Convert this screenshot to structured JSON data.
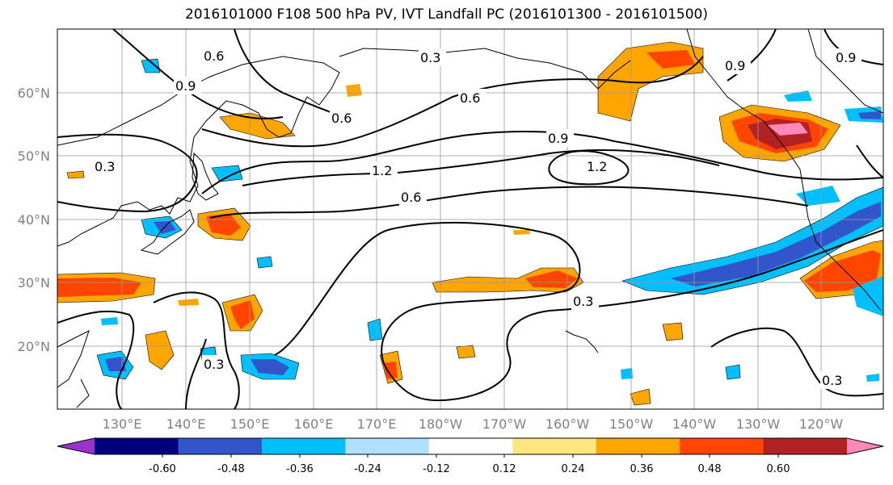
{
  "title": "2016101000 F108 500 hPa PV, IVT Landfall PC (2016101300 - 2016101500)",
  "lon_ticks": [
    "130°E",
    "140°E",
    "150°E",
    "160°E",
    "170°E",
    "180°W",
    "170°W",
    "160°W",
    "150°W",
    "140°W",
    "130°W",
    "120°W"
  ],
  "lat_ticks": [
    "20°N",
    "30°N",
    "40°N",
    "50°N",
    "60°N"
  ],
  "colorbar": {
    "colors": [
      "#9933cc",
      "#000080",
      "#3355cc",
      "#00bfff",
      "#b0e0ff",
      "#ffffff",
      "#ffe680",
      "#ffa500",
      "#ff4500",
      "#b22222",
      "#ff88bb"
    ],
    "tick_labels": [
      "-0.60",
      "-0.48",
      "-0.36",
      "-0.24",
      "-0.12",
      "0.12",
      "0.24",
      "0.36",
      "0.48",
      "0.60"
    ]
  },
  "contour_labels": [
    "0.6",
    "0.9",
    "0.3",
    "0.6",
    "0.6",
    "0.9",
    "1.2",
    "0.6",
    "1.2",
    "0.9",
    "0.9",
    "0.3",
    "0.3",
    "0.3",
    "0.3"
  ],
  "colors": {
    "coast": "#000000",
    "contour": "#000000",
    "grid": "#999999",
    "tick_text": "#808080"
  }
}
